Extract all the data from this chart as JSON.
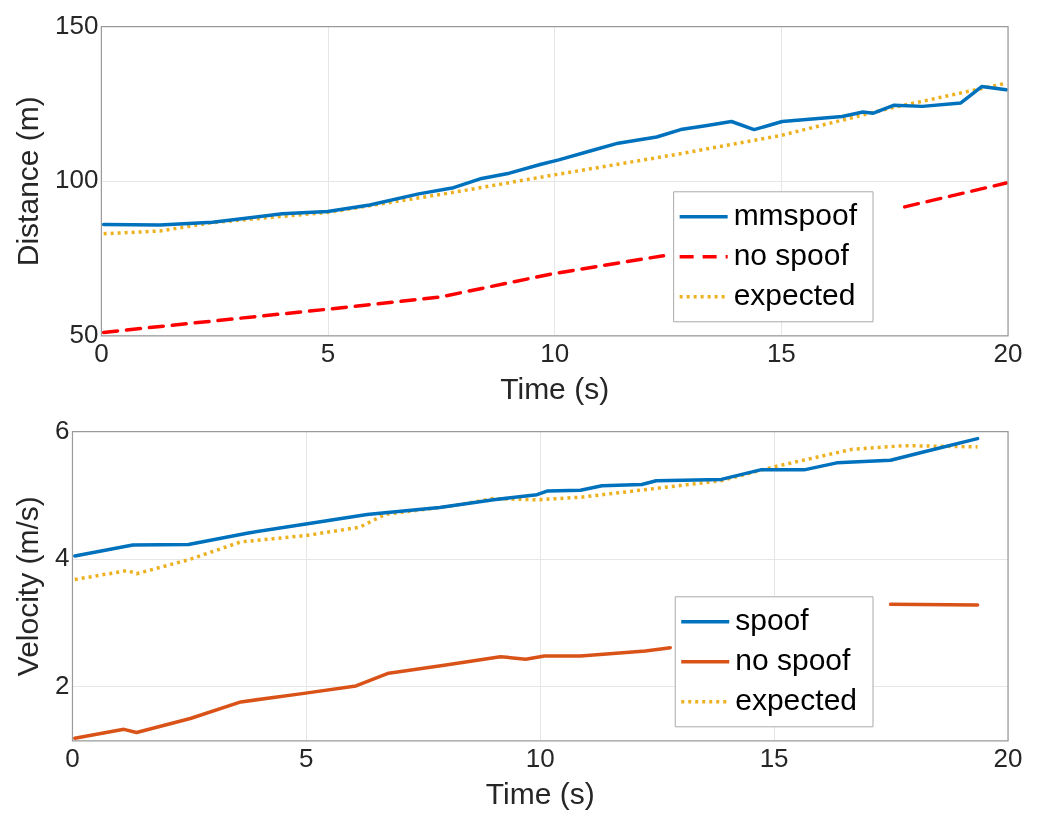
{
  "chart_data": [
    {
      "type": "line",
      "xlabel": "Time (s)",
      "ylabel": "Distance (m)",
      "xlim": [
        0,
        20
      ],
      "xticks": [
        0,
        5,
        10,
        15,
        20
      ],
      "ylim": [
        50,
        150
      ],
      "yticks": [
        50,
        100,
        150
      ],
      "grid": true,
      "legend": "bottom right",
      "series": [
        {
          "name": "mmspoof",
          "color": "#0072bd",
          "line_style": "solid",
          "x": [
            0.05,
            1.29,
            2.45,
            3.99,
            4.99,
            5.92,
            7.0,
            7.77,
            8.39,
            9.0,
            9.7,
            10.09,
            10.86,
            11.4,
            12.01,
            12.25,
            12.78,
            13.33,
            13.9,
            14.4,
            15.02,
            16.34,
            16.8,
            17.03,
            17.49,
            18.11,
            18.96,
            19.42,
            19.96
          ],
          "values": [
            86.0,
            85.8,
            86.7,
            89.5,
            90.2,
            92.3,
            95.9,
            97.9,
            100.9,
            102.6,
            105.5,
            106.9,
            110.1,
            112.3,
            113.7,
            114.3,
            116.7,
            117.9,
            119.3,
            116.7,
            119.3,
            120.9,
            122.4,
            122.0,
            124.6,
            124.2,
            125.3,
            130.6,
            129.6
          ]
        },
        {
          "name": "no spoof",
          "color": "#ff0000",
          "line_style": "dashed",
          "x": [
            0.05,
            2.07,
            4.99,
            7.46,
            9.93,
            12.4,
            15.2,
            17.72,
            19.96
          ],
          "values": [
            51.1,
            54.2,
            58.6,
            62.5,
            70.0,
            75.9,
            null,
            91.7,
            99.4
          ]
        },
        {
          "name": "expected",
          "color": "#edb120",
          "line_style": "dotted",
          "x": [
            0.05,
            1.29,
            2.45,
            4.99,
            7.77,
            9.77,
            12.78,
            15.02,
            17.37,
            19.96
          ],
          "values": [
            83.0,
            83.9,
            86.6,
            89.9,
            96.4,
            101.5,
            108.9,
            114.9,
            123.5,
            131.7
          ]
        }
      ]
    },
    {
      "type": "line",
      "xlabel": "Time (s)",
      "ylabel": "Velocity (m/s)",
      "xlim": [
        0,
        20
      ],
      "xticks": [
        0,
        5,
        10,
        15,
        20
      ],
      "ylim": [
        1.15,
        6
      ],
      "yticks": [
        2,
        4,
        6
      ],
      "grid": true,
      "legend": "bottom right",
      "series": [
        {
          "name": "spoof",
          "color": "#0072bd",
          "line_style": "solid",
          "x": [
            0.05,
            1.29,
            2.48,
            3.76,
            4.99,
            6.3,
            7.85,
            9.0,
            9.93,
            10.16,
            10.86,
            11.32,
            12.17,
            12.48,
            13.87,
            14.71,
            15.64,
            16.34,
            17.49,
            18.19,
            19.35
          ],
          "values": [
            4.05,
            4.22,
            4.23,
            4.41,
            4.55,
            4.7,
            4.81,
            4.93,
            5.01,
            5.07,
            5.08,
            5.15,
            5.17,
            5.23,
            5.25,
            5.4,
            5.4,
            5.51,
            5.55,
            5.68,
            5.89
          ]
        },
        {
          "name": "no spoof",
          "color": "#d95319",
          "line_style": "solid",
          "x": [
            0.05,
            1.1,
            1.37,
            2.52,
            3.6,
            4.91,
            6.06,
            6.76,
            7.91,
            9.15,
            9.69,
            10.09,
            10.86,
            12.25,
            12.78,
            15.0,
            17.49,
            19.35
          ],
          "values": [
            1.19,
            1.33,
            1.28,
            1.5,
            1.76,
            1.89,
            2.01,
            2.21,
            2.33,
            2.47,
            2.43,
            2.48,
            2.48,
            2.56,
            2.61,
            null,
            3.29,
            3.28
          ]
        },
        {
          "name": "expected",
          "color": "#edb120",
          "line_style": "dotted",
          "x": [
            0.05,
            1.18,
            1.37,
            2.48,
            3.6,
            4.99,
            6.14,
            6.68,
            8.07,
            9.0,
            9.93,
            10.86,
            13.87,
            14.95,
            16.65,
            17.8,
            19.35
          ],
          "values": [
            3.68,
            3.82,
            3.77,
            3.99,
            4.27,
            4.37,
            4.5,
            4.7,
            4.83,
            4.95,
            4.93,
            4.97,
            5.23,
            5.44,
            5.72,
            5.78,
            5.76
          ]
        }
      ]
    }
  ]
}
